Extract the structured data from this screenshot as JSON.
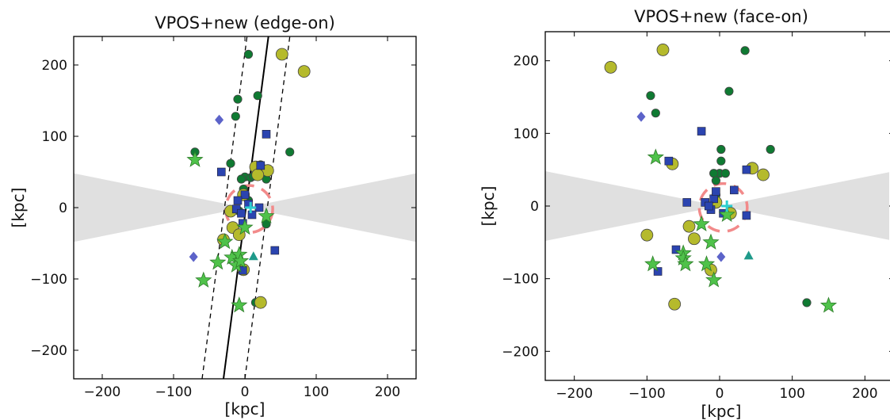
{
  "chart_data": [
    {
      "type": "scatter",
      "title": "VPOS+new (edge-on)",
      "xlabel": "[kpc]",
      "ylabel": "[kpc]",
      "xlim": [
        -240,
        240
      ],
      "ylim": [
        -240,
        240
      ],
      "xticks": [
        -200,
        -100,
        0,
        100,
        200
      ],
      "yticks": [
        -200,
        -100,
        0,
        100,
        200
      ],
      "xtick_labels": [
        "−200",
        "−100",
        "0",
        "100",
        "200"
      ],
      "ytick_labels": [
        "−200",
        "−100",
        "0",
        "100",
        "200"
      ],
      "grid": false,
      "legend": "none",
      "shaded_wedge": {
        "color": "#e0e0e0",
        "half_width_at_edge": 48
      },
      "plane_fit": {
        "solid": [
          [
            -30,
            -240
          ],
          [
            33,
            240
          ]
        ],
        "dashed": [
          [
            [
              -60,
              -240
            ],
            [
              3,
              240
            ]
          ],
          [
            [
              0,
              -240
            ],
            [
              63,
              240
            ]
          ]
        ]
      },
      "disk_ring": {
        "center": [
          6,
          -2
        ],
        "radius": 33,
        "color": "#f28a8a"
      },
      "series": [
        {
          "marker": "circle",
          "color": "#0f7a32",
          "points": [
            [
              5,
              215
            ],
            [
              18,
              157
            ],
            [
              -10,
              152
            ],
            [
              -13,
              128
            ],
            [
              -70,
              78
            ],
            [
              63,
              78
            ],
            [
              -20,
              62
            ],
            [
              22,
              60
            ],
            [
              0,
              43
            ],
            [
              8,
              42
            ],
            [
              12,
              44
            ],
            [
              -5,
              40
            ],
            [
              30,
              40
            ],
            [
              -2,
              26
            ],
            [
              5,
              10
            ],
            [
              -8,
              -5
            ],
            [
              30,
              -23
            ],
            [
              -5,
              -83
            ],
            [
              15,
              -133
            ]
          ]
        },
        {
          "marker": "circle",
          "color": "#b5ba2c",
          "points": [
            [
              52,
              215
            ],
            [
              83,
              191
            ],
            [
              32,
              52
            ],
            [
              15,
              57
            ],
            [
              18,
              46
            ],
            [
              -2,
              18
            ],
            [
              -20,
              -5
            ],
            [
              -17,
              -28
            ],
            [
              -8,
              -38
            ],
            [
              -30,
              -45
            ],
            [
              -2,
              -87
            ],
            [
              22,
              -133
            ]
          ]
        },
        {
          "marker": "square",
          "color": "#2b44b0",
          "points": [
            [
              30,
              103
            ],
            [
              -33,
              50
            ],
            [
              22,
              59
            ],
            [
              0,
              18
            ],
            [
              -10,
              10
            ],
            [
              5,
              5
            ],
            [
              -12,
              -2
            ],
            [
              -5,
              -8
            ],
            [
              20,
              0
            ],
            [
              10,
              -10
            ],
            [
              -3,
              -22
            ],
            [
              42,
              -60
            ],
            [
              -3,
              -88
            ]
          ]
        },
        {
          "marker": "diamond",
          "color": "#5c63c9",
          "points": [
            [
              -36,
              123
            ],
            [
              -72,
              -69
            ]
          ]
        },
        {
          "marker": "triangle",
          "color": "#1f9a8a",
          "points": [
            [
              12,
              -68
            ]
          ]
        },
        {
          "marker": "star",
          "color": "#4fc24a",
          "points": [
            [
              -70,
              67
            ],
            [
              30,
              -12
            ],
            [
              -28,
              -48
            ],
            [
              -38,
              -77
            ],
            [
              -18,
              -70
            ],
            [
              -8,
              -66
            ],
            [
              -12,
              -81
            ],
            [
              -6,
              -75
            ],
            [
              -58,
              -102
            ],
            [
              -8,
              -137
            ],
            [
              0,
              -28
            ]
          ]
        },
        {
          "marker": "plus",
          "color": "#2ccfd0",
          "points": [
            [
              8,
              0
            ]
          ]
        }
      ]
    },
    {
      "type": "scatter",
      "title": "VPOS+new (face-on)",
      "xlabel": "[kpc]",
      "ylabel": "[kpc]",
      "xlim": [
        -240,
        240
      ],
      "ylim": [
        -240,
        240
      ],
      "xticks": [
        -200,
        -100,
        0,
        100,
        200
      ],
      "yticks": [
        -200,
        -100,
        0,
        100,
        200
      ],
      "xtick_labels": [
        "−200",
        "−100",
        "0",
        "100",
        "200"
      ],
      "ytick_labels": [
        "−200",
        "−100",
        "0",
        "100",
        "200"
      ],
      "grid": false,
      "legend": "none",
      "shaded_wedge": {
        "color": "#e0e0e0",
        "half_width_at_edge": 48
      },
      "disk_ring": {
        "center": [
          5,
          -2
        ],
        "radius": 33,
        "color": "#f28a8a"
      },
      "series": [
        {
          "marker": "circle",
          "color": "#0f7a32",
          "points": [
            [
              35,
              214
            ],
            [
              13,
              158
            ],
            [
              -95,
              152
            ],
            [
              -88,
              128
            ],
            [
              70,
              78
            ],
            [
              2,
              78
            ],
            [
              2,
              62
            ],
            [
              0,
              45
            ],
            [
              -8,
              45
            ],
            [
              8,
              45
            ],
            [
              -5,
              35
            ],
            [
              120,
              -133
            ],
            [
              -5,
              15
            ]
          ]
        },
        {
          "marker": "circle",
          "color": "#b5ba2c",
          "points": [
            [
              -150,
              191
            ],
            [
              -78,
              215
            ],
            [
              -65,
              58
            ],
            [
              45,
              52
            ],
            [
              60,
              43
            ],
            [
              -100,
              -40
            ],
            [
              -42,
              -28
            ],
            [
              -35,
              -45
            ],
            [
              -12,
              -88
            ],
            [
              -62,
              -135
            ],
            [
              15,
              -10
            ],
            [
              -5,
              5
            ]
          ]
        },
        {
          "marker": "square",
          "color": "#2b44b0",
          "points": [
            [
              -25,
              103
            ],
            [
              -70,
              62
            ],
            [
              37,
              50
            ],
            [
              -45,
              5
            ],
            [
              -20,
              5
            ],
            [
              -8,
              10
            ],
            [
              20,
              22
            ],
            [
              -12,
              -5
            ],
            [
              5,
              -10
            ],
            [
              -15,
              0
            ],
            [
              37,
              -13
            ],
            [
              -60,
              -60
            ],
            [
              -85,
              -90
            ],
            [
              -5,
              20
            ]
          ]
        },
        {
          "marker": "diamond",
          "color": "#5c63c9",
          "points": [
            [
              -108,
              123
            ],
            [
              2,
              -70
            ]
          ]
        },
        {
          "marker": "triangle",
          "color": "#1f9a8a",
          "points": [
            [
              40,
              -68
            ]
          ]
        },
        {
          "marker": "star",
          "color": "#4fc24a",
          "points": [
            [
              -88,
              67
            ],
            [
              -25,
              -25
            ],
            [
              -12,
              -50
            ],
            [
              -50,
              -65
            ],
            [
              -50,
              -72
            ],
            [
              -47,
              -80
            ],
            [
              -92,
              -80
            ],
            [
              -18,
              -80
            ],
            [
              -8,
              -102
            ],
            [
              150,
              -137
            ],
            [
              10,
              -12
            ]
          ]
        },
        {
          "marker": "plus",
          "color": "#2ccfd0",
          "points": [
            [
              10,
              0
            ]
          ]
        }
      ]
    }
  ]
}
